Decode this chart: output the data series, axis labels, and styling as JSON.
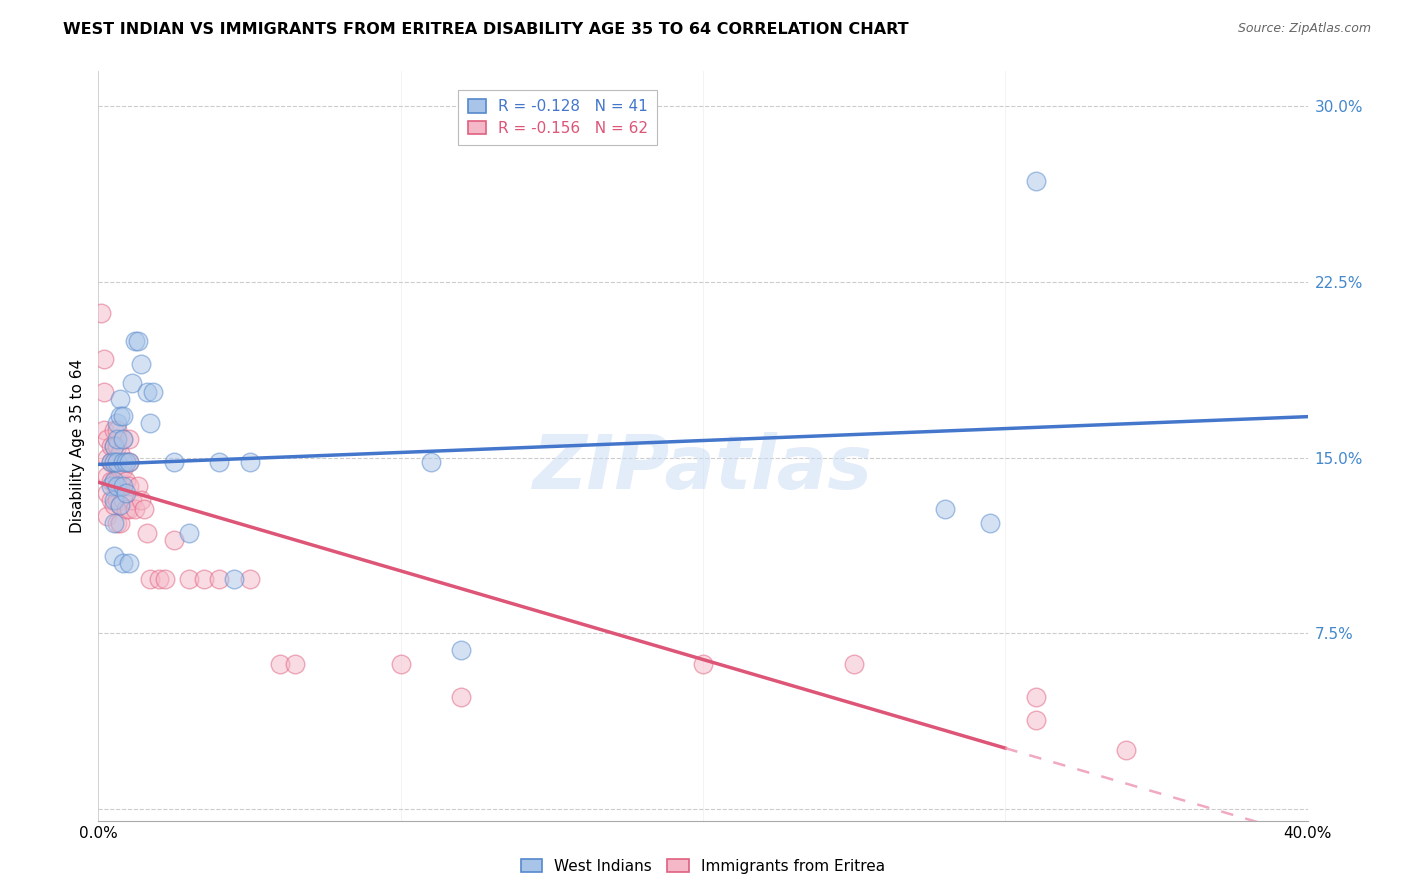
{
  "title": "WEST INDIAN VS IMMIGRANTS FROM ERITREA DISABILITY AGE 35 TO 64 CORRELATION CHART",
  "source": "Source: ZipAtlas.com",
  "ylabel": "Disability Age 35 to 64",
  "y_ticks": [
    0.0,
    0.075,
    0.15,
    0.225,
    0.3
  ],
  "y_tick_labels": [
    "",
    "7.5%",
    "15.0%",
    "22.5%",
    "30.0%"
  ],
  "x_ticks": [
    0.0,
    0.1,
    0.2,
    0.3,
    0.4
  ],
  "xlim": [
    0.0,
    0.4
  ],
  "ylim": [
    -0.005,
    0.315
  ],
  "watermark_text": "ZIPatlas",
  "blue_fill": "#a8c4e8",
  "blue_edge": "#5588cc",
  "pink_fill": "#f5b8c8",
  "pink_edge": "#e06080",
  "blue_line_color": "#4477cc",
  "pink_solid_color": "#dd5577",
  "pink_dash_color": "#f0a0b8",
  "west_indians_x": [
    0.004,
    0.004,
    0.005,
    0.005,
    0.005,
    0.005,
    0.005,
    0.005,
    0.006,
    0.006,
    0.006,
    0.006,
    0.007,
    0.007,
    0.007,
    0.008,
    0.008,
    0.008,
    0.008,
    0.008,
    0.009,
    0.009,
    0.01,
    0.01,
    0.011,
    0.012,
    0.013,
    0.014,
    0.016,
    0.017,
    0.018,
    0.025,
    0.03,
    0.04,
    0.045,
    0.05,
    0.11,
    0.12,
    0.28,
    0.295,
    0.31
  ],
  "west_indians_y": [
    0.148,
    0.138,
    0.155,
    0.148,
    0.14,
    0.132,
    0.122,
    0.108,
    0.165,
    0.158,
    0.148,
    0.138,
    0.175,
    0.168,
    0.13,
    0.168,
    0.158,
    0.148,
    0.138,
    0.105,
    0.148,
    0.135,
    0.148,
    0.105,
    0.182,
    0.2,
    0.2,
    0.19,
    0.178,
    0.165,
    0.178,
    0.148,
    0.118,
    0.148,
    0.098,
    0.148,
    0.148,
    0.068,
    0.128,
    0.122,
    0.268
  ],
  "eritrea_x": [
    0.001,
    0.002,
    0.002,
    0.002,
    0.003,
    0.003,
    0.003,
    0.003,
    0.003,
    0.004,
    0.004,
    0.004,
    0.004,
    0.005,
    0.005,
    0.005,
    0.005,
    0.005,
    0.006,
    0.006,
    0.006,
    0.006,
    0.006,
    0.006,
    0.007,
    0.007,
    0.007,
    0.007,
    0.007,
    0.008,
    0.008,
    0.008,
    0.009,
    0.009,
    0.009,
    0.01,
    0.01,
    0.01,
    0.01,
    0.011,
    0.012,
    0.013,
    0.014,
    0.015,
    0.016,
    0.017,
    0.02,
    0.022,
    0.025,
    0.03,
    0.035,
    0.04,
    0.05,
    0.06,
    0.065,
    0.1,
    0.12,
    0.2,
    0.25,
    0.31,
    0.31,
    0.34
  ],
  "eritrea_y": [
    0.212,
    0.192,
    0.178,
    0.162,
    0.158,
    0.15,
    0.142,
    0.135,
    0.125,
    0.155,
    0.148,
    0.14,
    0.132,
    0.162,
    0.155,
    0.148,
    0.14,
    0.13,
    0.162,
    0.155,
    0.148,
    0.14,
    0.132,
    0.122,
    0.152,
    0.145,
    0.138,
    0.13,
    0.122,
    0.158,
    0.145,
    0.132,
    0.148,
    0.14,
    0.128,
    0.158,
    0.148,
    0.138,
    0.128,
    0.132,
    0.128,
    0.138,
    0.132,
    0.128,
    0.118,
    0.098,
    0.098,
    0.098,
    0.115,
    0.098,
    0.098,
    0.098,
    0.098,
    0.062,
    0.062,
    0.062,
    0.048,
    0.062,
    0.062,
    0.048,
    0.038,
    0.025
  ]
}
